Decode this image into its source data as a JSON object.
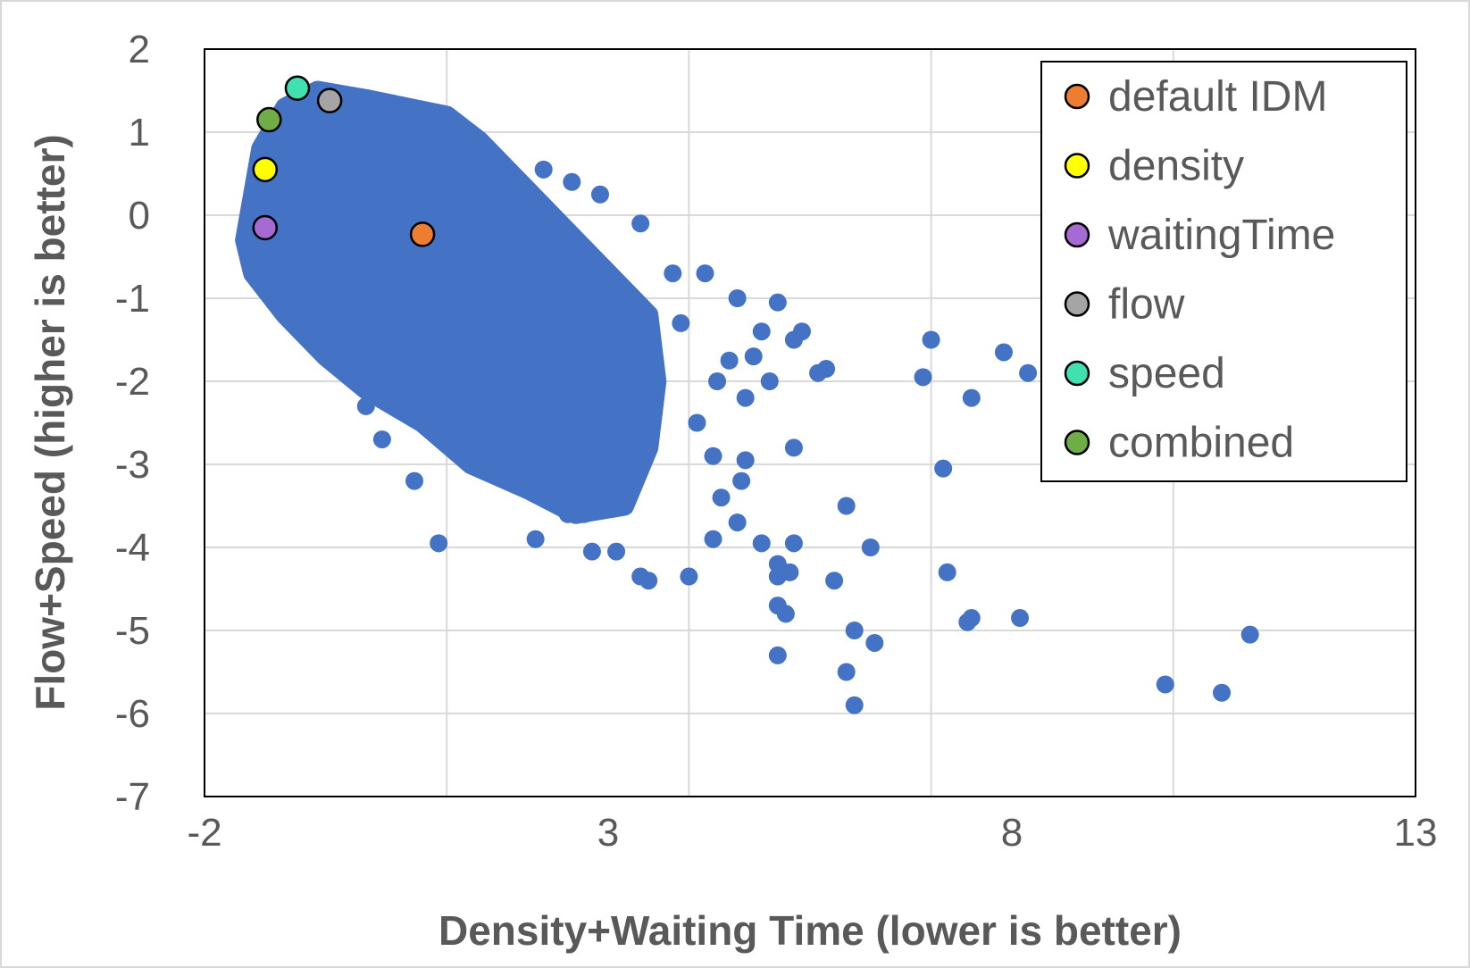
{
  "chart_data": {
    "type": "scatter",
    "title": "",
    "xlabel": "Density+Waiting Time (lower is better)",
    "ylabel": "Flow+Speed (higher is better)",
    "xlim": [
      -2,
      13
    ],
    "ylim": [
      -7,
      2
    ],
    "xticks": [
      -2,
      3,
      8,
      13
    ],
    "yticks": [
      2,
      1,
      0,
      -1,
      -2,
      -3,
      -4,
      -5,
      -6,
      -7
    ],
    "grid": true,
    "legend_position": "top-right",
    "background_series": {
      "color": "#4472C4",
      "approx_point_count": "thousands (dense cloud)",
      "cloud_outline": [
        [
          -1.5,
          -0.3
        ],
        [
          -1.3,
          0.8
        ],
        [
          -1.0,
          1.3
        ],
        [
          -0.6,
          1.5
        ],
        [
          0.0,
          1.4
        ],
        [
          0.5,
          1.3
        ],
        [
          1.0,
          1.2
        ],
        [
          1.4,
          0.9
        ],
        [
          2.0,
          0.3
        ],
        [
          2.6,
          -0.3
        ],
        [
          3.0,
          -0.7
        ],
        [
          3.5,
          -1.2
        ],
        [
          3.6,
          -2.0
        ],
        [
          3.5,
          -2.8
        ],
        [
          3.2,
          -3.5
        ],
        [
          2.6,
          -3.6
        ],
        [
          2.0,
          -3.3
        ],
        [
          1.3,
          -3.0
        ],
        [
          0.7,
          -2.5
        ],
        [
          0.0,
          -2.1
        ],
        [
          -0.5,
          -1.7
        ],
        [
          -1.0,
          -1.2
        ],
        [
          -1.4,
          -0.7
        ]
      ],
      "outliers": [
        [
          2.2,
          0.55
        ],
        [
          2.55,
          0.4
        ],
        [
          2.9,
          0.25
        ],
        [
          3.4,
          -0.1
        ],
        [
          4.2,
          -0.7
        ],
        [
          3.8,
          -0.7
        ],
        [
          4.6,
          -1.0
        ],
        [
          5.1,
          -1.05
        ],
        [
          4.9,
          -1.4
        ],
        [
          5.3,
          -1.5
        ],
        [
          5.4,
          -1.4
        ],
        [
          5.6,
          -1.9
        ],
        [
          4.8,
          -1.7
        ],
        [
          5.0,
          -2.0
        ],
        [
          4.7,
          -2.2
        ],
        [
          3.9,
          -1.3
        ],
        [
          4.5,
          -1.75
        ],
        [
          4.35,
          -2.0
        ],
        [
          4.1,
          -2.5
        ],
        [
          4.3,
          -2.9
        ],
        [
          4.7,
          -2.95
        ],
        [
          4.65,
          -3.2
        ],
        [
          5.3,
          -2.8
        ],
        [
          4.4,
          -3.4
        ],
        [
          4.3,
          -3.9
        ],
        [
          4.6,
          -3.7
        ],
        [
          4.9,
          -3.95
        ],
        [
          5.1,
          -4.2
        ],
        [
          5.3,
          -3.95
        ],
        [
          5.1,
          -4.35
        ],
        [
          5.25,
          -4.3
        ],
        [
          3.4,
          -4.35
        ],
        [
          3.5,
          -4.4
        ],
        [
          4.0,
          -4.35
        ],
        [
          5.1,
          -4.7
        ],
        [
          5.2,
          -4.8
        ],
        [
          5.1,
          -5.3
        ],
        [
          5.95,
          -3.5
        ],
        [
          6.25,
          -4.0
        ],
        [
          5.8,
          -4.4
        ],
        [
          6.05,
          -5.0
        ],
        [
          6.3,
          -5.15
        ],
        [
          5.95,
          -5.5
        ],
        [
          6.05,
          -5.9
        ],
        [
          5.7,
          -1.85
        ],
        [
          6.9,
          -1.95
        ],
        [
          7.0,
          -1.5
        ],
        [
          7.15,
          -3.05
        ],
        [
          7.2,
          -4.3
        ],
        [
          7.45,
          -4.9
        ],
        [
          7.5,
          -4.85
        ],
        [
          7.5,
          -2.2
        ],
        [
          7.9,
          -1.65
        ],
        [
          8.1,
          -4.85
        ],
        [
          8.2,
          -1.9
        ],
        [
          9.9,
          -5.65
        ],
        [
          10.6,
          -5.75
        ],
        [
          10.95,
          -5.05
        ],
        [
          0.9,
          -3.95
        ],
        [
          2.1,
          -3.9
        ],
        [
          2.8,
          -4.05
        ],
        [
          3.1,
          -4.05
        ],
        [
          0.2,
          -2.7
        ],
        [
          0.6,
          -3.2
        ],
        [
          0.0,
          -2.3
        ],
        [
          2.5,
          -3.6
        ],
        [
          2.7,
          -3.6
        ]
      ]
    },
    "highlight_series": [
      {
        "name": "default IDM",
        "x": 0.7,
        "y": -0.23,
        "color": "#ED7D31"
      },
      {
        "name": "density",
        "x": -1.25,
        "y": 0.55,
        "color": "#FFFF00"
      },
      {
        "name": "waitingTime",
        "x": -1.25,
        "y": -0.15,
        "color": "#A66BD3"
      },
      {
        "name": "flow",
        "x": -0.45,
        "y": 1.38,
        "color": "#A5A5A5"
      },
      {
        "name": "speed",
        "x": -0.85,
        "y": 1.53,
        "color": "#40E0B0"
      },
      {
        "name": "combined",
        "x": -1.2,
        "y": 1.15,
        "color": "#70AD47"
      }
    ]
  }
}
